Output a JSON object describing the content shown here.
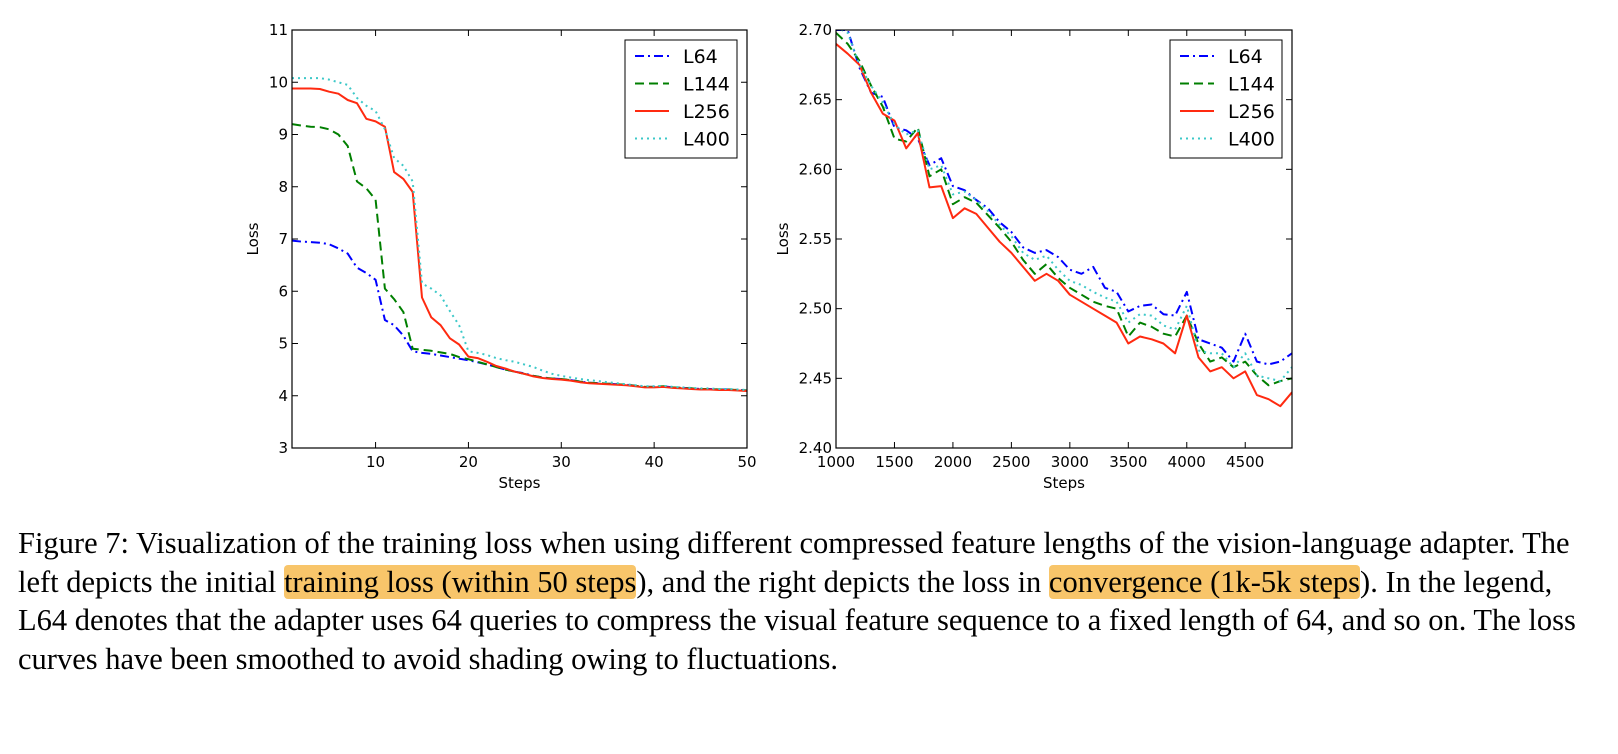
{
  "colors": {
    "L64": "#0000ff",
    "L144": "#007f00",
    "L256": "#ff2a10",
    "L400": "#3cc8c8",
    "highlight": "#f8c56a"
  },
  "chart_data": [
    {
      "type": "line",
      "xlabel": "Steps",
      "ylabel": "Loss",
      "xlim": [
        1,
        50
      ],
      "ylim": [
        3,
        11
      ],
      "xticks": [
        10,
        20,
        30,
        40,
        50
      ],
      "yticks": [
        3,
        4,
        5,
        6,
        7,
        8,
        9,
        10,
        11
      ],
      "legend_position": "top-right",
      "grid": false,
      "x": [
        1,
        2,
        3,
        4,
        5,
        6,
        7,
        8,
        9,
        10,
        11,
        12,
        13,
        14,
        15,
        16,
        17,
        18,
        19,
        20,
        21,
        22,
        23,
        24,
        25,
        26,
        27,
        28,
        29,
        30,
        31,
        32,
        33,
        34,
        35,
        36,
        37,
        38,
        39,
        40,
        41,
        42,
        43,
        44,
        45,
        46,
        47,
        48,
        49,
        50
      ],
      "series": [
        {
          "name": "L64",
          "style": "dashdot",
          "values": [
            6.97,
            6.95,
            6.94,
            6.93,
            6.9,
            6.82,
            6.72,
            6.45,
            6.35,
            6.22,
            5.45,
            5.35,
            5.15,
            4.85,
            4.82,
            4.8,
            4.77,
            4.74,
            4.71,
            4.68,
            4.64,
            4.6,
            4.55,
            4.5,
            4.46,
            4.43,
            4.38,
            4.35,
            4.33,
            4.32,
            4.3,
            4.27,
            4.25,
            4.24,
            4.23,
            4.22,
            4.21,
            4.19,
            4.17,
            4.17,
            4.18,
            4.16,
            4.15,
            4.14,
            4.13,
            4.13,
            4.12,
            4.12,
            4.11,
            4.1
          ]
        },
        {
          "name": "L144",
          "style": "dashed",
          "values": [
            9.2,
            9.17,
            9.15,
            9.14,
            9.1,
            9.0,
            8.78,
            8.1,
            7.97,
            7.75,
            6.05,
            5.85,
            5.6,
            4.9,
            4.88,
            4.86,
            4.83,
            4.8,
            4.74,
            4.7,
            4.65,
            4.6,
            4.55,
            4.5,
            4.46,
            4.42,
            4.38,
            4.35,
            4.33,
            4.32,
            4.3,
            4.27,
            4.25,
            4.24,
            4.23,
            4.22,
            4.21,
            4.19,
            4.17,
            4.17,
            4.18,
            4.16,
            4.15,
            4.14,
            4.13,
            4.13,
            4.12,
            4.12,
            4.11,
            4.1
          ]
        },
        {
          "name": "L256",
          "style": "solid",
          "values": [
            9.88,
            9.88,
            9.88,
            9.87,
            9.82,
            9.78,
            9.66,
            9.6,
            9.3,
            9.25,
            9.15,
            8.28,
            8.15,
            7.9,
            5.88,
            5.5,
            5.35,
            5.1,
            4.98,
            4.75,
            4.72,
            4.65,
            4.57,
            4.52,
            4.46,
            4.42,
            4.37,
            4.34,
            4.32,
            4.31,
            4.29,
            4.26,
            4.24,
            4.23,
            4.22,
            4.21,
            4.2,
            4.18,
            4.16,
            4.16,
            4.17,
            4.15,
            4.14,
            4.13,
            4.12,
            4.12,
            4.11,
            4.11,
            4.1,
            4.09
          ]
        },
        {
          "name": "L400",
          "style": "dotted",
          "values": [
            10.08,
            10.08,
            10.08,
            10.08,
            10.05,
            10.0,
            9.95,
            9.7,
            9.55,
            9.45,
            9.1,
            8.55,
            8.4,
            8.1,
            6.15,
            6.05,
            5.92,
            5.62,
            5.35,
            4.85,
            4.82,
            4.78,
            4.72,
            4.68,
            4.65,
            4.6,
            4.55,
            4.48,
            4.42,
            4.38,
            4.35,
            4.32,
            4.3,
            4.28,
            4.26,
            4.24,
            4.22,
            4.2,
            4.18,
            4.18,
            4.19,
            4.17,
            4.16,
            4.15,
            4.14,
            4.14,
            4.13,
            4.13,
            4.12,
            4.11
          ]
        }
      ]
    },
    {
      "type": "line",
      "xlabel": "Steps",
      "ylabel": "Loss",
      "xlim": [
        1000,
        4900
      ],
      "ylim": [
        2.4,
        2.7
      ],
      "xticks": [
        1000,
        1500,
        2000,
        2500,
        3000,
        3500,
        4000,
        4500
      ],
      "yticks": [
        2.4,
        2.45,
        2.5,
        2.55,
        2.6,
        2.65,
        2.7
      ],
      "legend_position": "top-right",
      "grid": false,
      "x": [
        1000,
        1100,
        1200,
        1300,
        1400,
        1500,
        1600,
        1700,
        1800,
        1900,
        2000,
        2100,
        2200,
        2300,
        2400,
        2500,
        2600,
        2700,
        2800,
        2900,
        3000,
        3100,
        3200,
        3300,
        3400,
        3500,
        3600,
        3700,
        3800,
        3900,
        4000,
        4100,
        4200,
        4300,
        4400,
        4500,
        4600,
        4700,
        4800,
        4900
      ],
      "series": [
        {
          "name": "L64",
          "style": "dashdot",
          "values": [
            2.7,
            2.7,
            2.673,
            2.655,
            2.652,
            2.63,
            2.628,
            2.622,
            2.603,
            2.608,
            2.588,
            2.585,
            2.578,
            2.572,
            2.562,
            2.555,
            2.544,
            2.54,
            2.542,
            2.537,
            2.528,
            2.525,
            2.53,
            2.515,
            2.512,
            2.498,
            2.502,
            2.503,
            2.496,
            2.495,
            2.512,
            2.478,
            2.475,
            2.472,
            2.462,
            2.482,
            2.462,
            2.46,
            2.462,
            2.468
          ]
        },
        {
          "name": "L144",
          "style": "dashed",
          "values": [
            2.698,
            2.69,
            2.678,
            2.66,
            2.645,
            2.622,
            2.62,
            2.63,
            2.595,
            2.6,
            2.575,
            2.58,
            2.576,
            2.567,
            2.558,
            2.548,
            2.535,
            2.525,
            2.532,
            2.522,
            2.515,
            2.51,
            2.505,
            2.502,
            2.5,
            2.48,
            2.49,
            2.487,
            2.482,
            2.48,
            2.495,
            2.475,
            2.462,
            2.465,
            2.458,
            2.462,
            2.452,
            2.445,
            2.448,
            2.45
          ]
        },
        {
          "name": "L256",
          "style": "solid",
          "values": [
            2.69,
            2.683,
            2.675,
            2.655,
            2.64,
            2.635,
            2.615,
            2.626,
            2.587,
            2.588,
            2.565,
            2.572,
            2.568,
            2.558,
            2.548,
            2.54,
            2.53,
            2.52,
            2.525,
            2.52,
            2.51,
            2.505,
            2.5,
            2.495,
            2.49,
            2.475,
            2.48,
            2.478,
            2.475,
            2.468,
            2.495,
            2.465,
            2.455,
            2.458,
            2.45,
            2.455,
            2.438,
            2.435,
            2.43,
            2.44
          ]
        },
        {
          "name": "L400",
          "style": "dotted",
          "values": [
            2.702,
            2.698,
            2.675,
            2.66,
            2.648,
            2.632,
            2.625,
            2.628,
            2.6,
            2.603,
            2.582,
            2.584,
            2.578,
            2.57,
            2.56,
            2.552,
            2.54,
            2.535,
            2.538,
            2.528,
            2.52,
            2.517,
            2.512,
            2.508,
            2.505,
            2.49,
            2.496,
            2.495,
            2.488,
            2.485,
            2.502,
            2.47,
            2.468,
            2.468,
            2.458,
            2.468,
            2.452,
            2.45,
            2.448,
            2.458
          ]
        }
      ]
    }
  ],
  "caption": {
    "part1": "Figure 7: Visualization of the training loss when using different compressed feature lengths of the vision-language adapter. The left depicts the initial ",
    "highlight1": "training loss (within 50 steps",
    "part2": "), and the right depicts the loss in ",
    "highlight2": "convergence (1k-5k steps",
    "part3": "). In the legend, L64 denotes that the adapter uses 64 queries to compress the visual feature sequence to a fixed length of 64, and so on. The loss curves have been smoothed to avoid shading owing to fluctuations."
  }
}
